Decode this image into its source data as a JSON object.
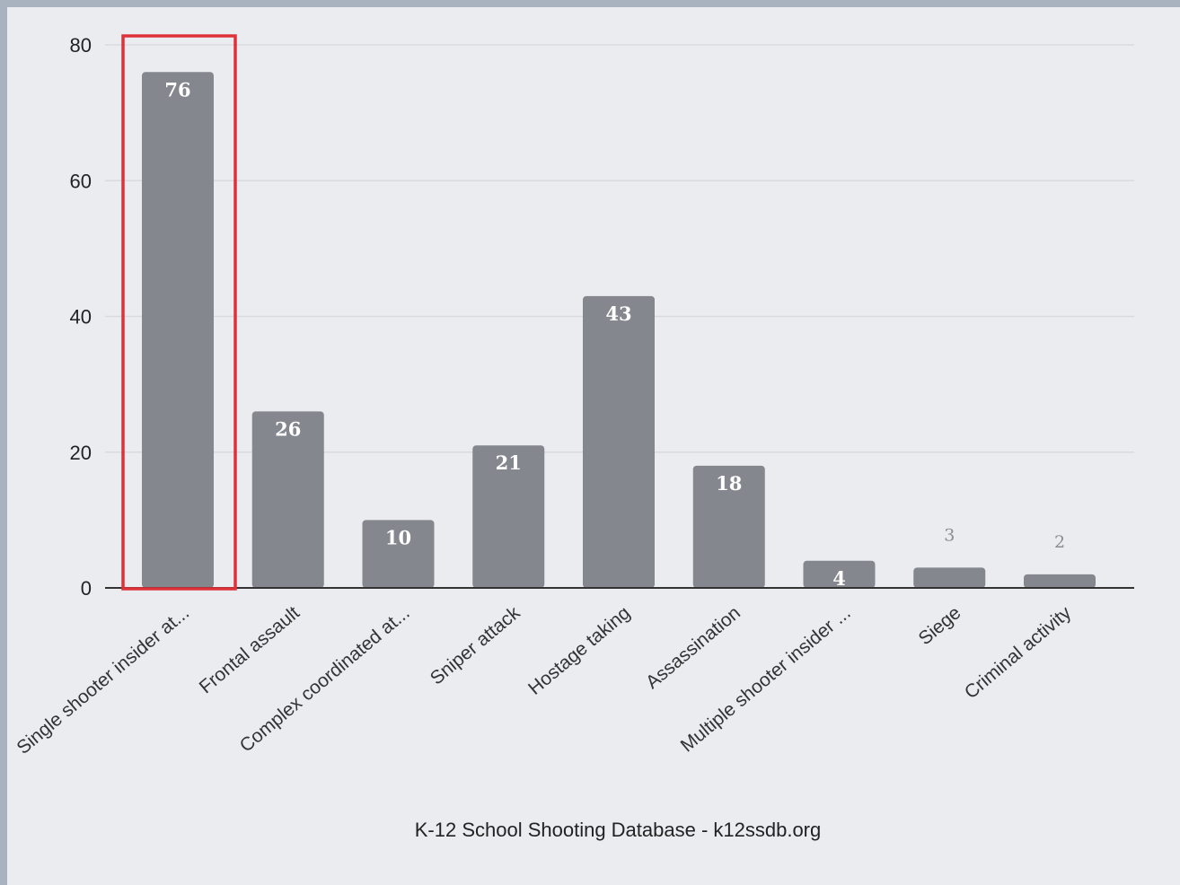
{
  "chart_data": {
    "type": "bar",
    "categories": [
      "Single shooter insider at...",
      "Frontal assault",
      "Complex coordinated at...",
      "Sniper attack",
      "Hostage taking",
      "Assassination",
      "Multiple shooter insider ...",
      "Siege",
      "Criminal activity"
    ],
    "values": [
      76,
      26,
      10,
      21,
      43,
      18,
      4,
      3,
      2
    ],
    "ylim": [
      0,
      80
    ],
    "yticks": [
      "0",
      "20",
      "40",
      "60",
      "80"
    ],
    "grid": true,
    "legend": "none",
    "highlight_index": 0,
    "colors": {
      "bar": "#84878d",
      "grid": "#d9dadf",
      "axis": "#333333",
      "highlight": "#e0313a",
      "background": "#ebecf0"
    }
  },
  "source": "K-12 School Shooting Database - k12ssdb.org"
}
